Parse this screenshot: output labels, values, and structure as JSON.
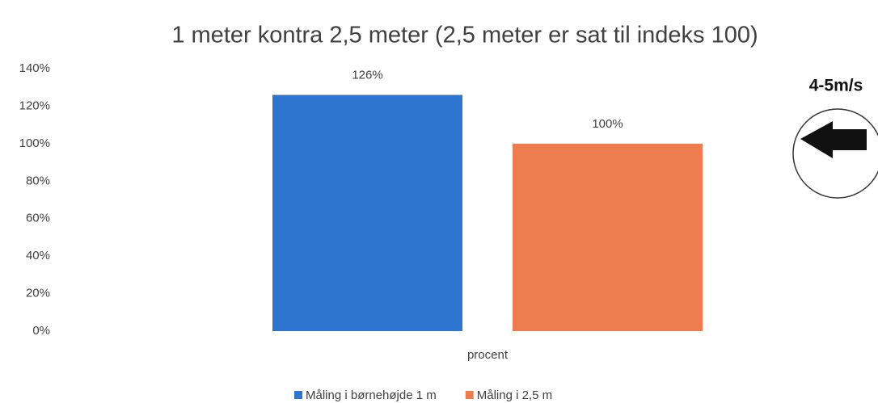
{
  "chart_data": {
    "type": "bar",
    "title": "1 meter kontra 2,5 meter (2,5 meter er sat til indeks 100)",
    "categories": [
      "procent"
    ],
    "series": [
      {
        "name": "Måling i børnehøjde 1 m",
        "color": "#2e75d0",
        "values": [
          126
        ],
        "value_labels": [
          "126%"
        ]
      },
      {
        "name": "Måling i 2,5 m",
        "color": "#ed7d4f",
        "values": [
          100
        ],
        "value_labels": [
          "100%"
        ]
      }
    ],
    "ylim": [
      0,
      140
    ],
    "yticks": [
      {
        "value": 0,
        "label": "0%"
      },
      {
        "value": 20,
        "label": "20%"
      },
      {
        "value": 40,
        "label": "40%"
      },
      {
        "value": 60,
        "label": "60%"
      },
      {
        "value": 80,
        "label": "80%"
      },
      {
        "value": 100,
        "label": "100%"
      },
      {
        "value": 120,
        "label": "120%"
      },
      {
        "value": 140,
        "label": "140%"
      }
    ],
    "grid": false,
    "legend": "bottom",
    "annotation": "4-5m/s"
  }
}
